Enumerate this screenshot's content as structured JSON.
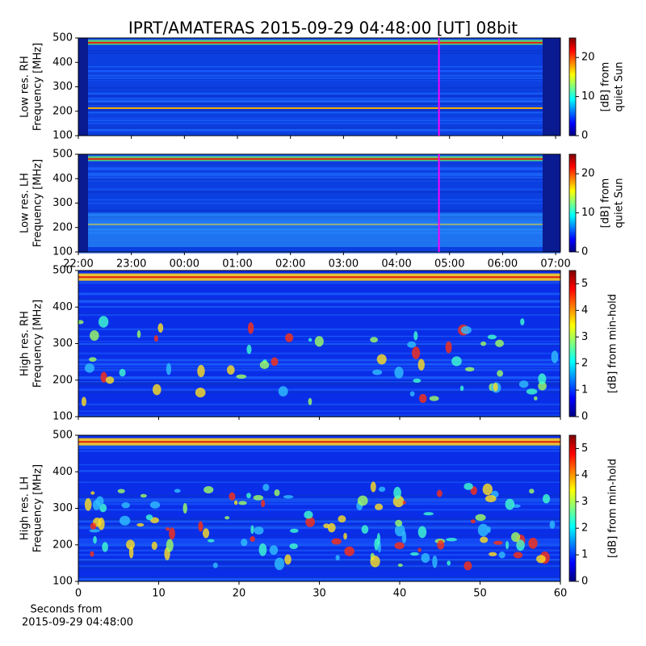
{
  "title": "IPRT/AMATERAS 2015-09-29 04:48:00 [UT]   08bit",
  "xlabel": [
    "Seconds from",
    "2015-09-29 04:48:00"
  ],
  "chart_data": [
    {
      "type": "spectrogram",
      "ylabel": [
        "Low res. RH",
        "Frequency [MHz]"
      ],
      "xlim": [
        22,
        31.09
      ],
      "ylim": [
        100,
        500
      ],
      "yticks": [
        100,
        200,
        300,
        400,
        500
      ],
      "marker": {
        "value": 28.8,
        "color": "#ff00ff"
      },
      "colorbar": {
        "label": [
          "[dB] from",
          "quiet Sun"
        ],
        "lim": [
          0,
          25
        ],
        "ticks": [
          0,
          10,
          20
        ],
        "colormap": "jet"
      }
    },
    {
      "type": "spectrogram",
      "ylabel": [
        "Low res. LH",
        "Frequency [MHz]"
      ],
      "xlim": [
        22,
        31.09
      ],
      "ylim": [
        100,
        500
      ],
      "yticks": [
        100,
        200,
        300,
        400,
        500
      ],
      "xticks": [
        {
          "value": 22,
          "label": "22:00"
        },
        {
          "value": 23,
          "label": "23:00"
        },
        {
          "value": 24,
          "label": "00:00"
        },
        {
          "value": 25,
          "label": "01:00"
        },
        {
          "value": 26,
          "label": "02:00"
        },
        {
          "value": 27,
          "label": "03:00"
        },
        {
          "value": 28,
          "label": "04:00"
        },
        {
          "value": 29,
          "label": "05:00"
        },
        {
          "value": 30,
          "label": "06:00"
        },
        {
          "value": 31,
          "label": "07:00"
        }
      ],
      "marker": {
        "value": 28.8,
        "color": "#ff00ff"
      },
      "colorbar": {
        "label": [
          "[dB] from",
          "quiet Sun"
        ],
        "lim": [
          0,
          25
        ],
        "ticks": [
          0,
          10,
          20
        ],
        "colormap": "jet"
      }
    },
    {
      "type": "spectrogram",
      "ylabel": [
        "High res. RH",
        "Frequency [MHz]"
      ],
      "xlim": [
        0,
        60
      ],
      "ylim": [
        100,
        500
      ],
      "yticks": [
        100,
        200,
        300,
        400,
        500
      ],
      "colorbar": {
        "label": [
          "[dB] from min-hold"
        ],
        "lim": [
          0,
          5.5
        ],
        "ticks": [
          0,
          1,
          2,
          3,
          4,
          5
        ],
        "colormap": "jet"
      }
    },
    {
      "type": "spectrogram",
      "ylabel": [
        "High res. LH",
        "Frequency [MHz]"
      ],
      "xlim": [
        0,
        60
      ],
      "ylim": [
        100,
        500
      ],
      "yticks": [
        100,
        200,
        300,
        400,
        500
      ],
      "xticks": [
        0,
        10,
        20,
        30,
        40,
        50,
        60
      ],
      "colorbar": {
        "label": [
          "[dB] from min-hold"
        ],
        "lim": [
          0,
          5.5
        ],
        "ticks": [
          0,
          1,
          2,
          3,
          4,
          5
        ],
        "colormap": "jet"
      }
    }
  ]
}
